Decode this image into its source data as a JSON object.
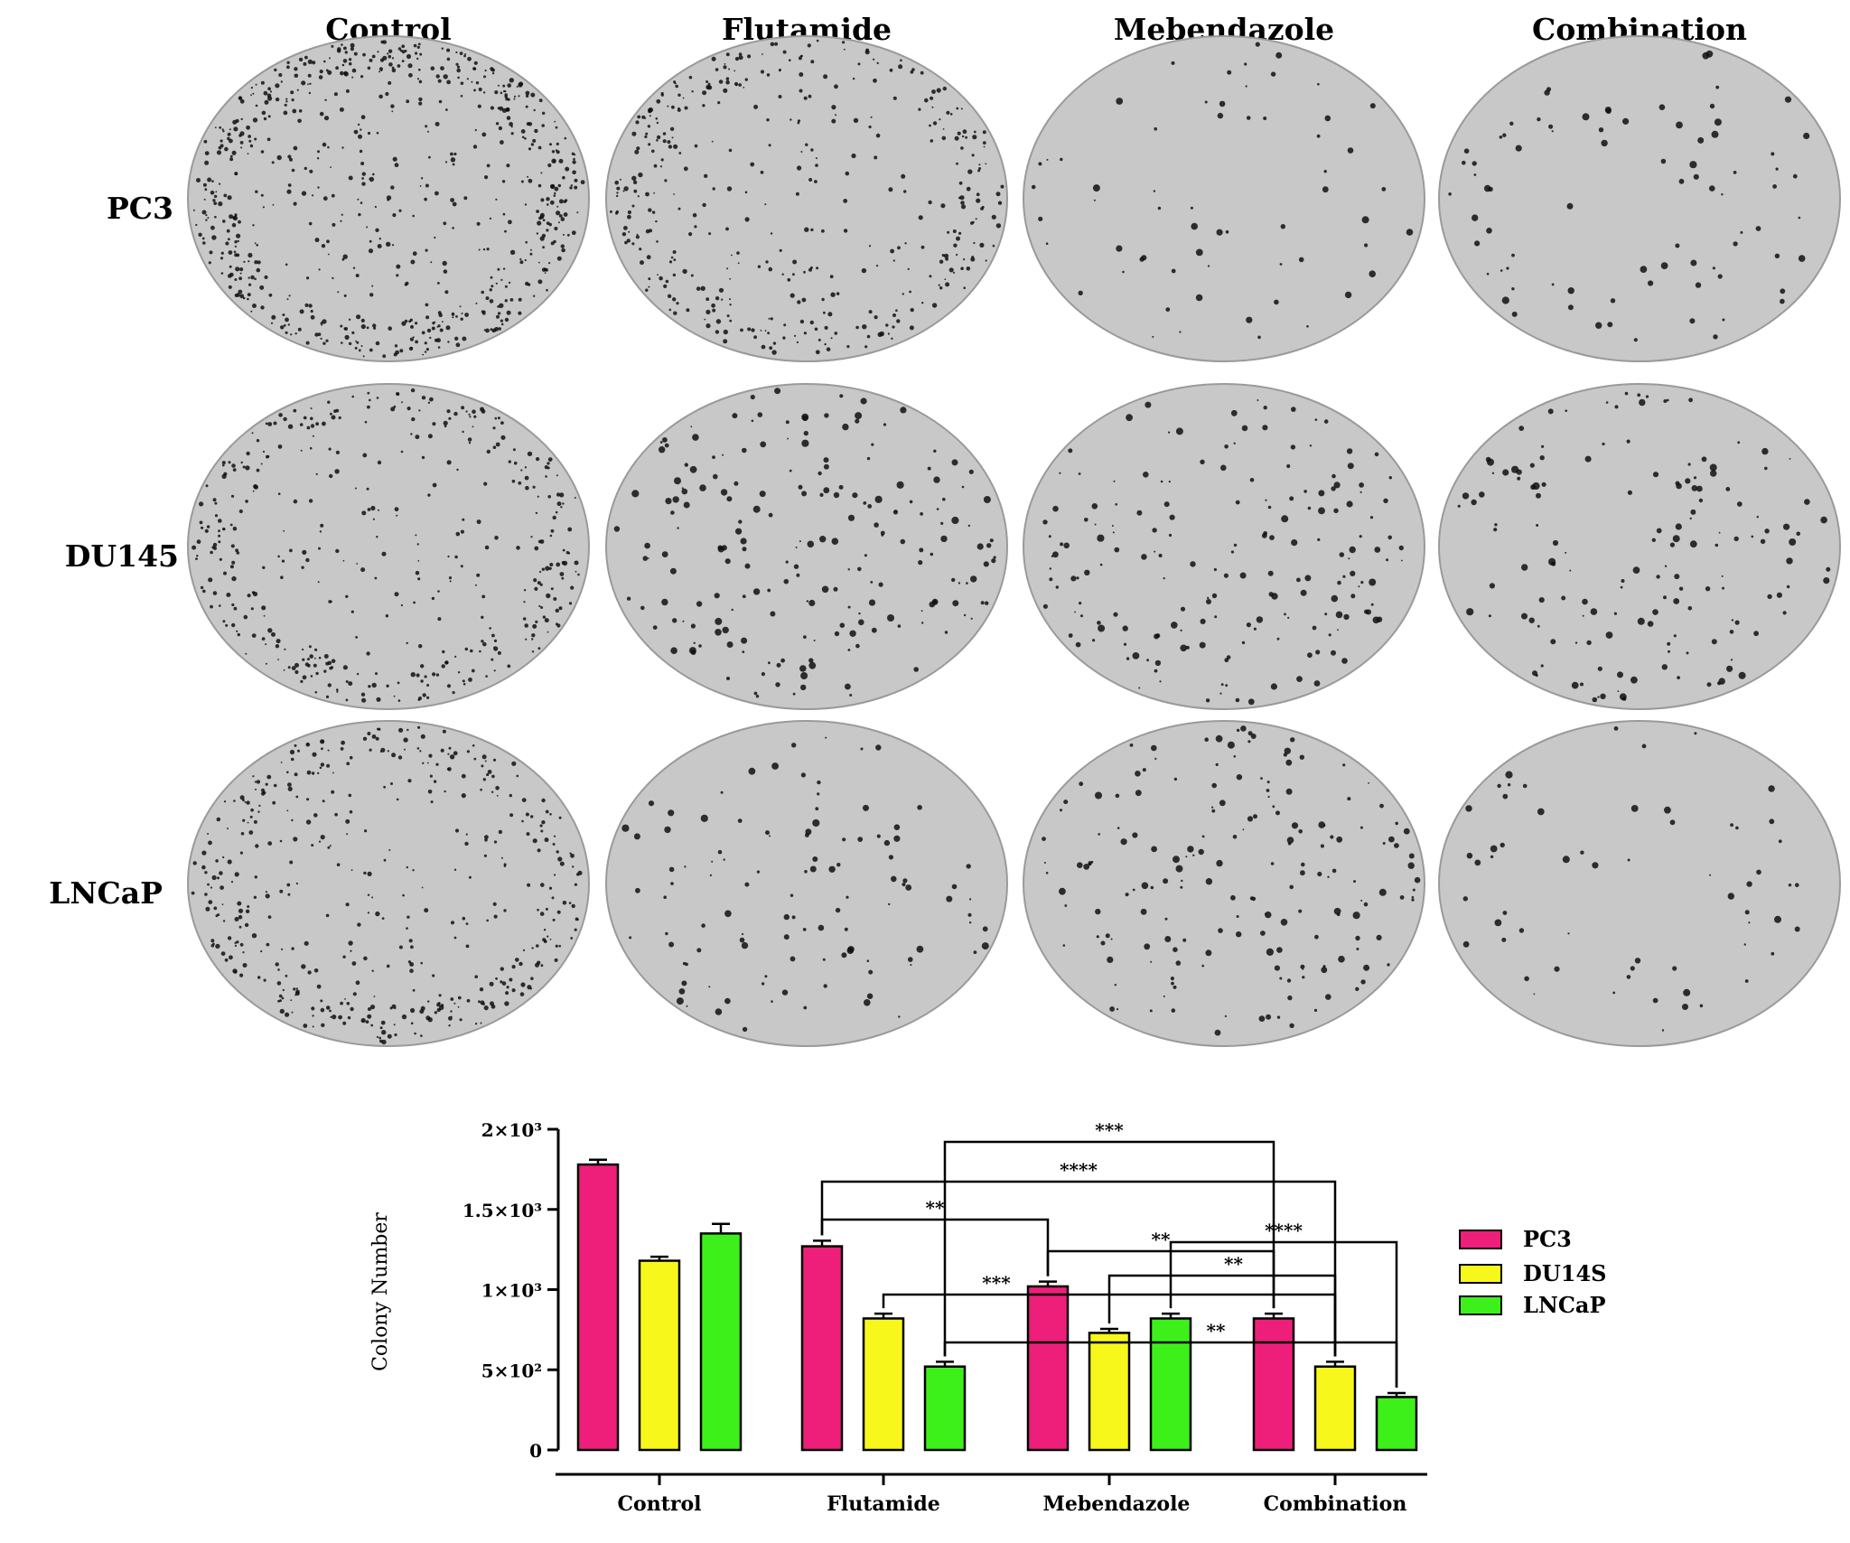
{
  "panel_top": {
    "column_headers": [
      "Control",
      "Flutamide",
      "Mebendazole",
      "Combination"
    ],
    "row_labels": [
      "PC3",
      "DU145",
      "LNCaP"
    ],
    "plate_density": [
      [
        0.95,
        0.55,
        0.05,
        0.08
      ],
      [
        0.55,
        0.25,
        0.22,
        0.18
      ],
      [
        0.6,
        0.12,
        0.22,
        0.05
      ]
    ]
  },
  "colors": {
    "PC3": "#ee1f7a",
    "DU145": "#f7f71c",
    "LNCaP": "#3ef01a",
    "plate": "#c8c8c8",
    "plate_edge": "#9a9a9a",
    "colony": "#111111"
  },
  "chart_data": {
    "type": "bar",
    "title": "",
    "ylabel": "Colony Number",
    "xlabel": "",
    "ylim": [
      0,
      2000
    ],
    "yticks": [
      {
        "value": 0,
        "label": "0"
      },
      {
        "value": 500,
        "label": "5×10²"
      },
      {
        "value": 1000,
        "label": "1×10³"
      },
      {
        "value": 1500,
        "label": "1.5×10³"
      },
      {
        "value": 2000,
        "label": "2×10³"
      }
    ],
    "categories": [
      "Control",
      "Flutamide",
      "Mebendazole",
      "Combination"
    ],
    "series": [
      {
        "name": "PC3",
        "values": [
          1780,
          1270,
          1020,
          820
        ],
        "errors": [
          30,
          35,
          30,
          30
        ]
      },
      {
        "name": "DU14S",
        "values": [
          1180,
          820,
          730,
          520
        ],
        "errors": [
          25,
          30,
          25,
          30
        ]
      },
      {
        "name": "LNCaP",
        "values": [
          1350,
          520,
          820,
          330
        ],
        "errors": [
          60,
          30,
          30,
          25
        ]
      }
    ],
    "legend": {
      "position": "right",
      "entries": [
        "PC3",
        "DU14S",
        "LNCaP"
      ]
    },
    "significance": [
      {
        "from": [
          1,
          2
        ],
        "to": [
          3,
          0
        ],
        "label": "***"
      },
      {
        "from": [
          1,
          0
        ],
        "to": [
          3,
          1
        ],
        "label": "****"
      },
      {
        "from": [
          1,
          0
        ],
        "to": [
          2,
          0
        ],
        "label": "**"
      },
      {
        "from": [
          2,
          0
        ],
        "to": [
          3,
          0
        ],
        "label": "**"
      },
      {
        "from": [
          2,
          1
        ],
        "to": [
          3,
          1
        ],
        "label": "**"
      },
      {
        "from": [
          2,
          2
        ],
        "to": [
          3,
          2
        ],
        "label": "****"
      },
      {
        "from": [
          1,
          1
        ],
        "to": [
          3,
          1
        ],
        "label": "***"
      },
      {
        "from": [
          1,
          2
        ],
        "to": [
          3,
          2
        ],
        "label": "**"
      }
    ]
  }
}
